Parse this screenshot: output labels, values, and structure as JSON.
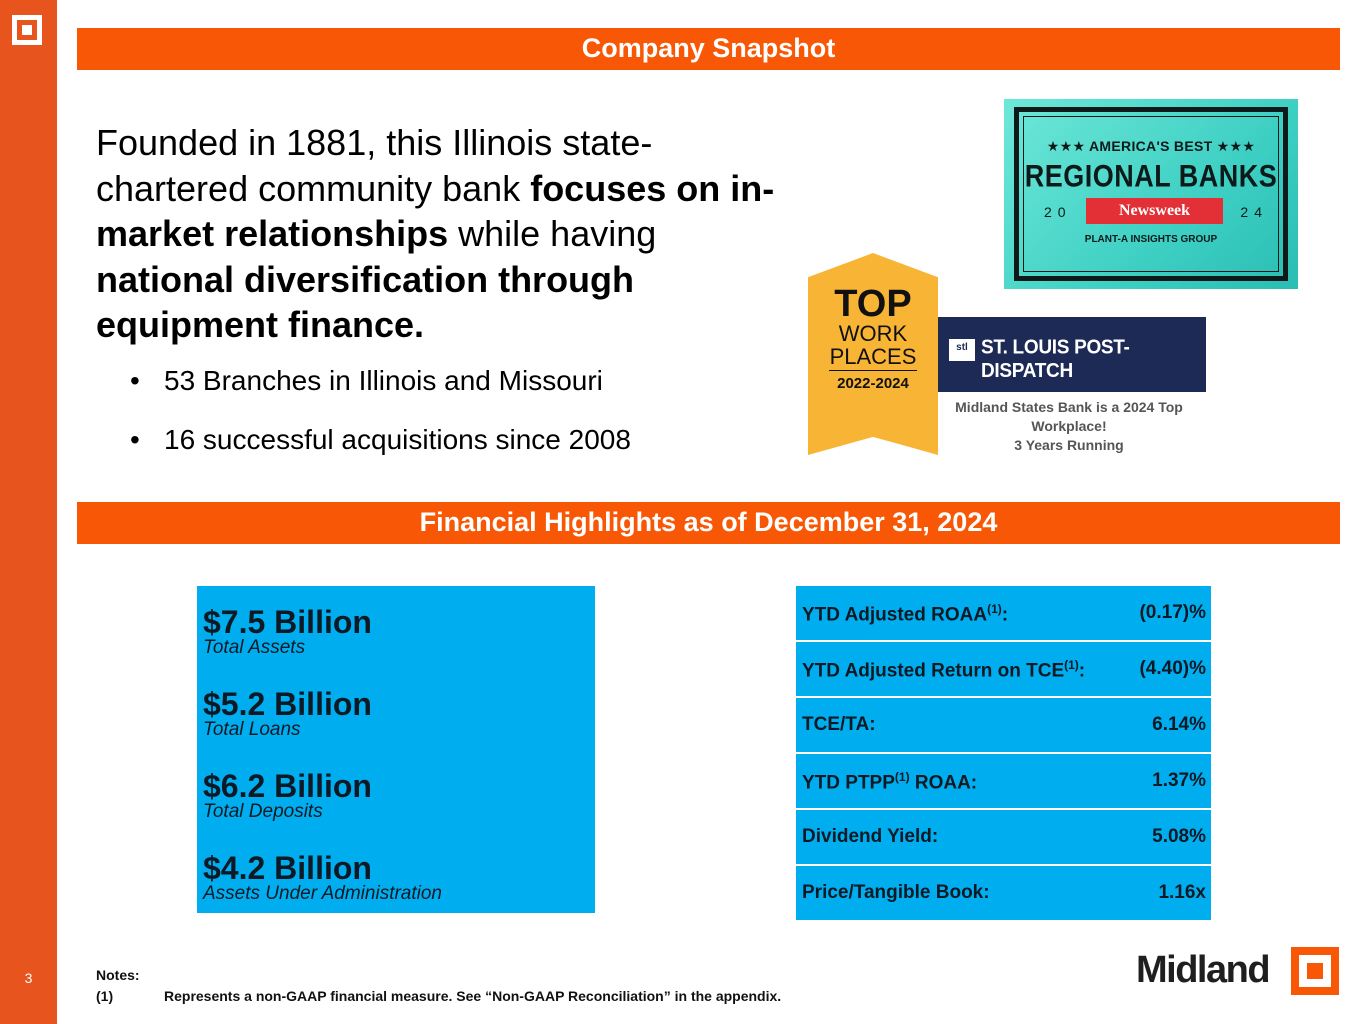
{
  "page": {
    "number": "3"
  },
  "snapshot": {
    "title": "Company Snapshot",
    "intro": {
      "p1": "Founded in 1881, this Illinois state-chartered community bank ",
      "b1": "focuses on in-market relationships",
      "p2": " while having ",
      "b2": "national diversification through equipment finance."
    },
    "bullets": [
      "53 Branches in Illinois and Missouri",
      "16 successful acquisitions since 2008"
    ]
  },
  "awards": {
    "newsweek": {
      "top": "★★★ AMERICA'S BEST ★★★",
      "title": "REGIONAL BANKS",
      "year_left": "20",
      "ribbon": "Newsweek",
      "year_right": "24",
      "org": "PLANT-A INSIGHTS GROUP"
    },
    "topworkplaces": {
      "top": "TOP",
      "work": "WORK",
      "places": "PLACES",
      "years": "2022-2024"
    },
    "stl": {
      "logo": "stl",
      "name": "ST. LOUIS POST-DISPATCH",
      "caption_line1": "Midland States Bank is a 2024 Top Workplace!",
      "caption_line2": "3 Years Running"
    }
  },
  "financials": {
    "title": "Financial Highlights as of December 31, 2024",
    "stats": [
      {
        "value": "$7.5 Billion",
        "label": "Total Assets"
      },
      {
        "value": "$5.2 Billion",
        "label": "Total Loans"
      },
      {
        "value": "$6.2 Billion",
        "label": "Total Deposits"
      },
      {
        "value": "$4.2 Billion",
        "label": "Assets Under Administration"
      }
    ],
    "metrics": [
      {
        "pre": "YTD Adjusted ROAA",
        "sup": "(1)",
        "post": ":",
        "value": "(0.17)%"
      },
      {
        "pre": "YTD Adjusted Return on TCE",
        "sup": "(1)",
        "post": ":",
        "value": "(4.40)%"
      },
      {
        "pre": "TCE/TA:",
        "sup": "",
        "post": "",
        "value": "6.14%"
      },
      {
        "pre": "YTD PTPP",
        "sup": "(1)",
        "post": " ROAA:",
        "value": "1.37%"
      },
      {
        "pre": "Dividend Yield:",
        "sup": "",
        "post": "",
        "value": "5.08%"
      },
      {
        "pre": "Price/Tangible Book:",
        "sup": "",
        "post": "",
        "value": "1.16x"
      }
    ]
  },
  "notes": {
    "heading": "Notes:",
    "marker": "(1)",
    "text": "Represents a non-GAAP financial measure. See “Non-GAAP Reconciliation” in the appendix."
  },
  "brand": {
    "name": "Midland",
    "accent": "#f85805",
    "sidebar": "#e8541d",
    "panel": "#00adee"
  }
}
